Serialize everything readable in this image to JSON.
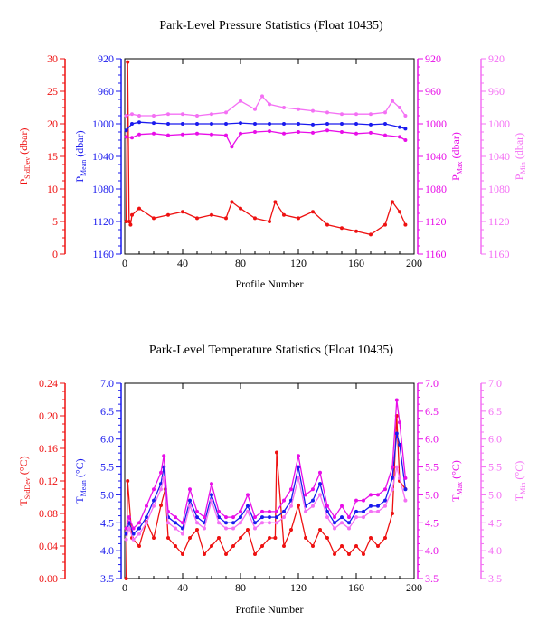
{
  "colors": {
    "red": "#ee1111",
    "blue": "#1a1aee",
    "magenta": "#e80ee8",
    "pink": "#f470f4",
    "black": "#000000"
  },
  "chart_data": [
    {
      "type": "line",
      "title": "Park-Level Pressure Statistics (Float 10435)",
      "xlabel": "Profile Number",
      "xlim": [
        0,
        200
      ],
      "x_ticks": [
        "0",
        "40",
        "80",
        "120",
        "160",
        "200"
      ],
      "axes": {
        "stddev": {
          "label_main": "P",
          "label_sub": "StdDev",
          "label_unit": " (dbar)",
          "ticks": [
            "0",
            "5",
            "10",
            "15",
            "20",
            "25",
            "30"
          ],
          "ylim": [
            0,
            30
          ]
        },
        "mean": {
          "label_main": "P",
          "label_sub": "Mean",
          "label_unit": " (dbar)",
          "ticks": [
            "920",
            "960",
            "1000",
            "1040",
            "1080",
            "1120",
            "1160"
          ],
          "ylim": [
            1160,
            920
          ]
        },
        "max": {
          "label_main": "P",
          "label_sub": "Max",
          "label_unit": " (dbar)",
          "ticks": [
            "920",
            "960",
            "1000",
            "1040",
            "1080",
            "1120",
            "1160"
          ],
          "ylim": [
            1160,
            920
          ]
        },
        "min": {
          "label_main": "P",
          "label_sub": "Min",
          "label_unit": " (dbar)",
          "ticks": [
            "920",
            "960",
            "1000",
            "1040",
            "1080",
            "1120",
            "1160"
          ],
          "ylim": [
            1160,
            920
          ]
        }
      },
      "series": [
        {
          "key": "stddev",
          "axis": "stddev",
          "color": "red",
          "x": [
            1,
            2,
            3,
            4,
            5,
            10,
            20,
            30,
            40,
            50,
            60,
            70,
            74,
            80,
            90,
            100,
            104,
            110,
            120,
            130,
            140,
            150,
            160,
            170,
            180,
            185,
            190,
            194
          ],
          "y": [
            5,
            29.5,
            5,
            4.5,
            6,
            7,
            5.5,
            6,
            6.5,
            5.5,
            6,
            5.5,
            8,
            7,
            5.5,
            5,
            8,
            6,
            5.5,
            6.5,
            4.5,
            4,
            3.5,
            3,
            4.5,
            8,
            6.5,
            4.5
          ]
        },
        {
          "key": "mean",
          "axis": "mean",
          "color": "blue",
          "x": [
            1,
            5,
            10,
            20,
            30,
            40,
            50,
            60,
            70,
            80,
            90,
            100,
            110,
            120,
            130,
            140,
            150,
            160,
            170,
            180,
            190,
            194
          ],
          "y": [
            1008,
            1000,
            998,
            999,
            1000,
            1000,
            1000,
            1000,
            1000,
            999,
            1000,
            1000,
            1000,
            1000,
            1001,
            1000,
            1000,
            1000,
            1001,
            1000,
            1004,
            1006
          ]
        },
        {
          "key": "max",
          "axis": "max",
          "color": "magenta",
          "x": [
            1,
            5,
            10,
            20,
            30,
            40,
            50,
            60,
            70,
            74,
            80,
            90,
            100,
            110,
            120,
            130,
            140,
            150,
            160,
            170,
            180,
            190,
            194
          ],
          "y": [
            1016,
            1017,
            1013,
            1012,
            1014,
            1013,
            1012,
            1013,
            1014,
            1028,
            1012,
            1010,
            1009,
            1012,
            1010,
            1011,
            1008,
            1010,
            1012,
            1011,
            1014,
            1016,
            1020
          ]
        },
        {
          "key": "min",
          "axis": "min",
          "color": "pink",
          "x": [
            1,
            5,
            10,
            20,
            30,
            40,
            50,
            60,
            70,
            80,
            90,
            95,
            100,
            110,
            120,
            130,
            140,
            150,
            160,
            170,
            180,
            185,
            190,
            194
          ],
          "y": [
            990,
            988,
            990,
            990,
            988,
            988,
            990,
            988,
            986,
            972,
            982,
            966,
            976,
            980,
            982,
            984,
            986,
            988,
            988,
            988,
            986,
            972,
            980,
            990
          ]
        }
      ]
    },
    {
      "type": "line",
      "title": "Park-Level Temperature Statistics (Float 10435)",
      "xlabel": "Profile Number",
      "xlim": [
        0,
        200
      ],
      "x_ticks": [
        "0",
        "40",
        "80",
        "120",
        "160",
        "200"
      ],
      "axes": {
        "stddev": {
          "label_main": "T",
          "label_sub": "StdDev",
          "label_unit": " (°C)",
          "ticks": [
            "0.00",
            "0.04",
            "0.08",
            "0.12",
            "0.16",
            "0.20",
            "0.24"
          ],
          "ylim": [
            0,
            0.24
          ]
        },
        "mean": {
          "label_main": "T",
          "label_sub": "Mean",
          "label_unit": " (°C)",
          "ticks": [
            "3.5",
            "4.0",
            "4.5",
            "5.0",
            "5.5",
            "6.0",
            "6.5",
            "7.0"
          ],
          "ylim": [
            3.5,
            7.0
          ]
        },
        "max": {
          "label_main": "T",
          "label_sub": "Max",
          "label_unit": " (°C)",
          "ticks": [
            "3.5",
            "4.0",
            "4.5",
            "5.0",
            "5.5",
            "6.0",
            "6.5",
            "7.0"
          ],
          "ylim": [
            3.5,
            7.0
          ]
        },
        "min": {
          "label_main": "T",
          "label_sub": "Min",
          "label_unit": " (°C)",
          "ticks": [
            "3.5",
            "4.0",
            "4.5",
            "5.0",
            "5.5",
            "6.0",
            "6.5",
            "7.0"
          ],
          "ylim": [
            3.5,
            7.0
          ]
        }
      },
      "series": [
        {
          "key": "stddev",
          "axis": "stddev",
          "color": "red",
          "x": [
            1,
            2,
            5,
            10,
            15,
            20,
            25,
            28,
            30,
            35,
            40,
            45,
            50,
            55,
            60,
            65,
            70,
            75,
            80,
            85,
            90,
            95,
            100,
            104,
            105,
            110,
            115,
            120,
            125,
            130,
            135,
            140,
            145,
            150,
            155,
            160,
            165,
            170,
            175,
            180,
            185,
            188,
            190,
            194
          ],
          "y": [
            0.0,
            0.12,
            0.05,
            0.04,
            0.07,
            0.05,
            0.09,
            0.11,
            0.05,
            0.04,
            0.03,
            0.05,
            0.06,
            0.03,
            0.04,
            0.05,
            0.03,
            0.04,
            0.05,
            0.06,
            0.03,
            0.04,
            0.05,
            0.05,
            0.155,
            0.04,
            0.06,
            0.09,
            0.05,
            0.04,
            0.06,
            0.05,
            0.03,
            0.04,
            0.03,
            0.04,
            0.03,
            0.05,
            0.04,
            0.05,
            0.08,
            0.2,
            0.12,
            0.11
          ]
        },
        {
          "key": "mean",
          "axis": "mean",
          "color": "blue",
          "x": [
            1,
            3,
            6,
            10,
            15,
            20,
            25,
            27,
            30,
            35,
            40,
            45,
            50,
            55,
            60,
            65,
            70,
            75,
            80,
            85,
            90,
            95,
            100,
            105,
            110,
            115,
            120,
            125,
            130,
            135,
            140,
            145,
            150,
            155,
            160,
            165,
            170,
            175,
            180,
            185,
            188,
            190,
            194
          ],
          "y": [
            4.3,
            4.5,
            4.3,
            4.4,
            4.6,
            4.9,
            5.2,
            5.5,
            4.6,
            4.5,
            4.4,
            4.9,
            4.6,
            4.5,
            5.0,
            4.6,
            4.5,
            4.5,
            4.6,
            4.8,
            4.5,
            4.6,
            4.6,
            4.6,
            4.7,
            4.9,
            5.5,
            4.8,
            4.9,
            5.2,
            4.7,
            4.5,
            4.6,
            4.5,
            4.7,
            4.7,
            4.8,
            4.8,
            4.9,
            5.3,
            6.1,
            5.9,
            5.1
          ]
        },
        {
          "key": "max",
          "axis": "max",
          "color": "magenta",
          "x": [
            1,
            3,
            6,
            10,
            15,
            20,
            25,
            27,
            30,
            35,
            40,
            45,
            50,
            55,
            60,
            65,
            70,
            75,
            80,
            85,
            90,
            95,
            100,
            105,
            110,
            115,
            120,
            125,
            130,
            135,
            140,
            145,
            150,
            155,
            160,
            165,
            170,
            175,
            180,
            185,
            188,
            190,
            194
          ],
          "y": [
            4.4,
            4.6,
            4.4,
            4.5,
            4.8,
            5.1,
            5.4,
            5.7,
            4.7,
            4.6,
            4.5,
            5.1,
            4.7,
            4.6,
            5.2,
            4.7,
            4.6,
            4.6,
            4.7,
            5.0,
            4.6,
            4.7,
            4.7,
            4.7,
            4.9,
            5.1,
            5.7,
            5.0,
            5.1,
            5.4,
            4.8,
            4.6,
            4.8,
            4.6,
            4.9,
            4.9,
            5.0,
            5.0,
            5.1,
            5.5,
            6.7,
            6.3,
            5.3
          ]
        },
        {
          "key": "min",
          "axis": "min",
          "color": "pink",
          "x": [
            1,
            3,
            6,
            10,
            15,
            20,
            25,
            27,
            30,
            35,
            40,
            45,
            50,
            55,
            60,
            65,
            70,
            75,
            80,
            85,
            90,
            95,
            100,
            105,
            110,
            115,
            120,
            125,
            130,
            135,
            140,
            145,
            150,
            155,
            160,
            165,
            170,
            175,
            180,
            185,
            188,
            190,
            194
          ],
          "y": [
            4.2,
            4.4,
            4.2,
            4.3,
            4.5,
            4.8,
            5.1,
            5.3,
            4.5,
            4.4,
            4.3,
            4.8,
            4.5,
            4.4,
            4.9,
            4.5,
            4.4,
            4.4,
            4.5,
            4.7,
            4.4,
            4.5,
            4.5,
            4.5,
            4.6,
            4.8,
            5.3,
            4.7,
            4.8,
            5.0,
            4.6,
            4.4,
            4.5,
            4.4,
            4.6,
            4.6,
            4.7,
            4.7,
            4.8,
            5.1,
            5.5,
            5.3,
            4.9
          ]
        }
      ]
    }
  ]
}
